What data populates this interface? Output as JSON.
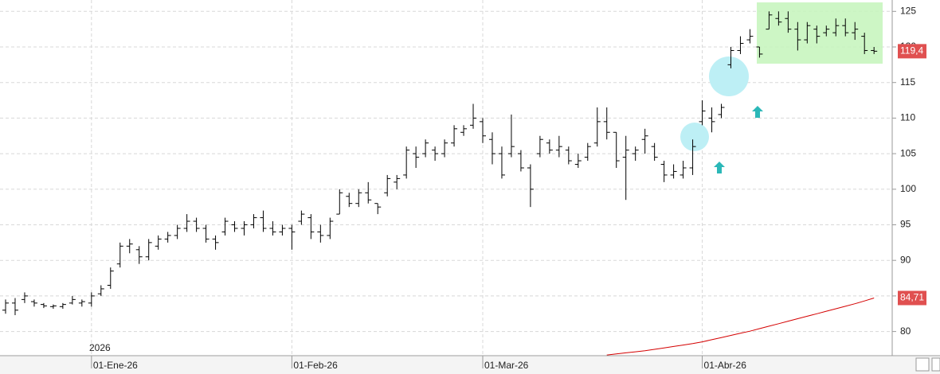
{
  "chart_data": {
    "type": "ohlc",
    "categories": [
      null,
      null,
      null,
      null,
      null,
      null,
      null,
      null,
      null,
      "01-Ene-26",
      null,
      null,
      null,
      null,
      null,
      null,
      null,
      null,
      null,
      null,
      null,
      null,
      null,
      null,
      null,
      null,
      null,
      null,
      null,
      null,
      "01-Feb-26",
      null,
      null,
      null,
      null,
      null,
      null,
      null,
      null,
      null,
      null,
      null,
      null,
      null,
      null,
      null,
      null,
      null,
      null,
      null,
      "01-Mar-26",
      null,
      null,
      null,
      null,
      null,
      null,
      null,
      null,
      null,
      null,
      null,
      null,
      null,
      null,
      null,
      null,
      null,
      null,
      null,
      null,
      null,
      null,
      "01-Abr-26",
      null,
      null,
      null,
      null,
      null,
      null,
      null,
      null,
      null,
      null,
      null,
      null,
      null,
      null,
      null,
      null,
      null,
      null
    ],
    "open": [
      83,
      84,
      84.5,
      84.2,
      83.8,
      83.5,
      83.5,
      84,
      84,
      84,
      85.3,
      86.5,
      89.5,
      92,
      91.5,
      90.5,
      92,
      93,
      93.5,
      94.5,
      95.5,
      94.5,
      93,
      94,
      95,
      94.5,
      95,
      96,
      94.5,
      94,
      94.5,
      95.5,
      96,
      94,
      93.5,
      96.5,
      99,
      98,
      99.5,
      98,
      99.5,
      101,
      102,
      105,
      105,
      105.5,
      105,
      106.5,
      108,
      109,
      109.5,
      107,
      105,
      105,
      105,
      103,
      105,
      106.5,
      105.5,
      105.5,
      103.5,
      104.5,
      106.5,
      109.5,
      108,
      104.5,
      105,
      107,
      106,
      103.5,
      102,
      102,
      103,
      109.5,
      110,
      110.5,
      117.5,
      119.5,
      121,
      120,
      122.5,
      124,
      124,
      122.5,
      121,
      122.5,
      122,
      122,
      123,
      122,
      121.5,
      119.5
    ],
    "high": [
      84.5,
      84.7,
      85.5,
      84.5,
      84,
      83.8,
      84,
      85,
      84.5,
      85.5,
      86.5,
      89,
      92.5,
      93,
      92,
      93,
      93.5,
      94,
      95,
      96.5,
      96,
      95,
      93.5,
      96,
      95.5,
      95.5,
      96.5,
      97,
      95.5,
      95,
      95,
      97,
      96.5,
      95,
      96,
      100,
      99.5,
      100,
      101,
      98,
      102,
      102,
      106,
      106,
      107,
      106,
      107,
      109,
      109,
      112,
      110,
      108,
      106,
      110.5,
      105.5,
      103.5,
      107.5,
      107,
      107.5,
      106,
      105,
      106.5,
      111.5,
      111.5,
      108,
      107.5,
      106,
      108.5,
      106.5,
      104,
      103.5,
      104,
      107,
      112.5,
      111.5,
      112,
      120,
      121.5,
      122.5,
      120,
      125,
      125,
      125,
      123.5,
      123.5,
      123,
      123,
      124,
      124,
      123.5,
      122,
      120
    ],
    "low": [
      82.5,
      82.3,
      84,
      83.5,
      83.3,
      83.2,
      83.2,
      83.8,
      83.5,
      83.5,
      85,
      86,
      89,
      91,
      89.5,
      90,
      91.5,
      92.5,
      93,
      94,
      94,
      92.5,
      91.5,
      93.5,
      94,
      93.5,
      94.5,
      94,
      93.5,
      93.5,
      91.5,
      95,
      93,
      92.5,
      93,
      96.5,
      97.5,
      97.5,
      98,
      96.5,
      99,
      100,
      101.5,
      103,
      104.5,
      104,
      104.5,
      106,
      107.5,
      108.5,
      106.5,
      103.5,
      101.5,
      104.5,
      102.5,
      97.5,
      104.5,
      105,
      104.5,
      103.5,
      103,
      104,
      106,
      107,
      103,
      98.5,
      104,
      105,
      104,
      101,
      101.5,
      101.5,
      102,
      109,
      108,
      110,
      117,
      119,
      120.5,
      118.5,
      122.5,
      123,
      122,
      119.5,
      120.5,
      120.5,
      121.5,
      121.5,
      121.5,
      121,
      119,
      119
    ],
    "close": [
      84,
      83,
      85,
      84,
      83.6,
      83.6,
      83.8,
      84.5,
      84.2,
      85,
      86,
      88.5,
      92,
      92.3,
      90.5,
      92.5,
      93,
      93.5,
      94.5,
      95.5,
      94.5,
      93,
      92.5,
      95.5,
      94.5,
      95,
      96,
      94.5,
      94,
      94.5,
      94,
      96.5,
      94,
      93.5,
      95.5,
      99.5,
      98,
      99.5,
      98.5,
      97.5,
      101.5,
      101.5,
      105.5,
      104.5,
      106.5,
      105,
      106.5,
      108.5,
      108.5,
      110,
      107.5,
      105,
      102,
      106,
      103,
      100,
      107,
      105.5,
      106,
      104,
      104,
      106,
      109.5,
      108,
      104,
      105.5,
      105.5,
      107.5,
      104.5,
      102,
      102.5,
      103,
      106,
      111,
      109.5,
      111.5,
      119.5,
      120.5,
      121.5,
      119,
      124.5,
      123.5,
      122.5,
      121,
      123,
      121.5,
      122.5,
      123,
      122,
      122.5,
      119.5,
      119.4
    ],
    "color": "#000000",
    "last_price": {
      "value": 119.4,
      "label": "119,4"
    },
    "moving_average": {
      "color": "#d40000",
      "values": [
        null,
        null,
        null,
        null,
        null,
        null,
        null,
        null,
        null,
        null,
        null,
        null,
        null,
        null,
        null,
        null,
        null,
        null,
        null,
        null,
        null,
        null,
        null,
        null,
        null,
        null,
        null,
        null,
        null,
        null,
        null,
        null,
        null,
        null,
        null,
        null,
        null,
        null,
        null,
        null,
        null,
        null,
        null,
        null,
        null,
        null,
        null,
        null,
        null,
        null,
        null,
        null,
        null,
        null,
        null,
        null,
        null,
        null,
        null,
        null,
        null,
        null,
        null,
        76.7,
        76.85,
        77.0,
        77.15,
        77.3,
        77.5,
        77.7,
        77.9,
        78.1,
        78.3,
        78.55,
        78.85,
        79.15,
        79.45,
        79.75,
        80.05,
        80.4,
        80.75,
        81.1,
        81.45,
        81.8,
        82.15,
        82.5,
        82.85,
        83.2,
        83.55,
        83.9,
        84.3,
        84.71
      ],
      "end_label": {
        "value": 84.71,
        "label": "84,71"
      }
    },
    "year_label": "2026",
    "ylim": [
      76.6,
      126.6
    ],
    "yticks": [
      80,
      85,
      90,
      95,
      100,
      105,
      110,
      115,
      120,
      125
    ],
    "grid": true
  }
}
